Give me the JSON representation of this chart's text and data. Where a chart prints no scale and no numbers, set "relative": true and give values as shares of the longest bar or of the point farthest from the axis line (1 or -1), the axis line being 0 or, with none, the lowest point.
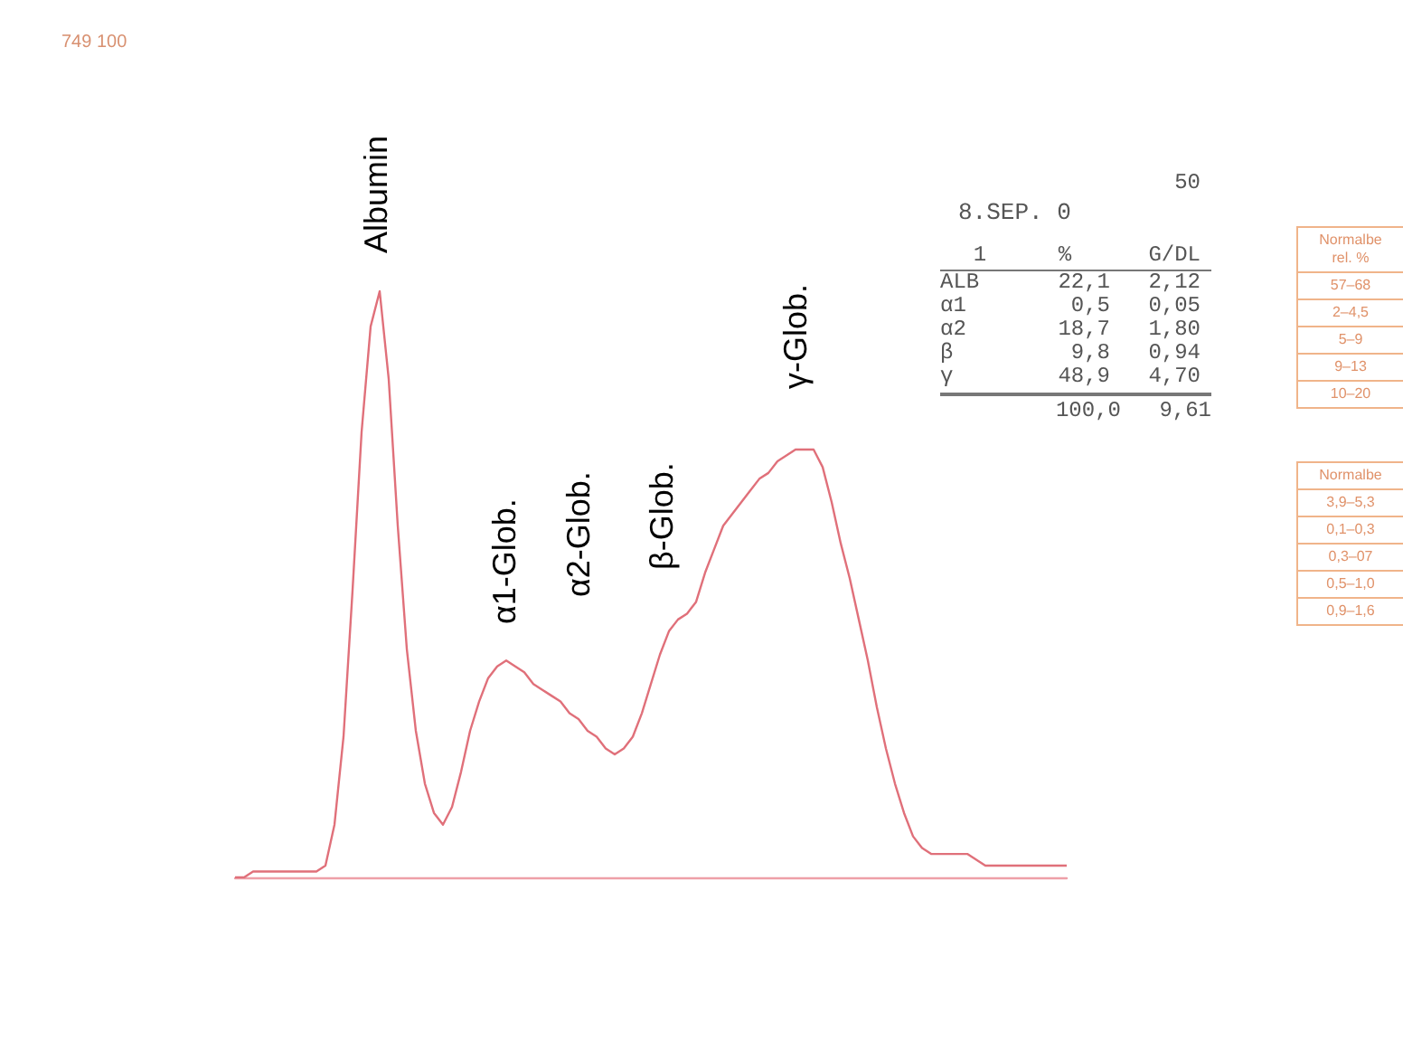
{
  "chart_data": [
    {
      "type": "line",
      "relative": true,
      "color": "#e0707a",
      "line_style": "solid",
      "annotations": [
        "749 100",
        "Albumin",
        "α1-Glob.",
        "α2-Glob.",
        "β-Glob.",
        "γ-Glob."
      ],
      "categories": [
        null,
        null,
        null,
        null,
        null,
        null,
        null,
        null,
        null,
        null,
        null,
        null,
        null,
        null,
        null,
        null,
        null,
        null,
        null,
        null,
        null,
        null,
        null,
        null,
        null,
        null,
        null,
        null,
        null,
        null,
        null,
        null,
        null,
        null,
        null,
        null,
        null,
        null,
        null,
        null,
        null,
        null,
        null,
        null,
        null,
        null,
        null,
        null,
        null,
        null,
        null,
        null,
        null,
        null,
        null,
        null,
        null,
        null,
        null,
        null,
        null,
        null,
        null,
        null,
        null,
        null,
        null,
        null,
        null,
        null,
        null,
        null,
        null,
        null,
        null,
        null,
        null,
        null,
        null,
        null,
        null,
        null,
        null,
        null,
        null,
        null,
        null,
        null,
        null,
        null,
        null,
        null,
        null
      ],
      "values": [
        0,
        0,
        0.01,
        0.01,
        0.01,
        0.01,
        0.01,
        0.01,
        0.01,
        0.01,
        0.02,
        0.09,
        0.24,
        0.49,
        0.76,
        0.94,
        1,
        0.85,
        0.6,
        0.39,
        0.25,
        0.16,
        0.11,
        0.09,
        0.12,
        0.18,
        0.25,
        0.3,
        0.34,
        0.36,
        0.37,
        0.36,
        0.35,
        0.33,
        0.32,
        0.31,
        0.3,
        0.28,
        0.27,
        0.25,
        0.24,
        0.22,
        0.21,
        0.22,
        0.24,
        0.28,
        0.33,
        0.38,
        0.42,
        0.44,
        0.45,
        0.47,
        0.52,
        0.56,
        0.6,
        0.62,
        0.64,
        0.66,
        0.68,
        0.69,
        0.71,
        0.72,
        0.73,
        0.73,
        0.73,
        0.7,
        0.64,
        0.57,
        0.51,
        0.44,
        0.37,
        0.29,
        0.22,
        0.16,
        0.11,
        0.07,
        0.05,
        0.04,
        0.04,
        0.04,
        0.04,
        0.04,
        0.03,
        0.02,
        0.02,
        0.02,
        0.02,
        0.02,
        0.02,
        0.02,
        0.02,
        0.02,
        0.02
      ]
    },
    {
      "type": "other",
      "title": "8.SEP. 0",
      "subtitle": "50",
      "annotations": [
        "1",
        "%",
        "G/DL",
        "ALB",
        "22,1",
        "2,12",
        "α1",
        "0,5",
        "0,05",
        "α2",
        "18,7",
        "1,80",
        "β",
        "9,8",
        "0,94",
        "γ",
        "48,9",
        "4,70",
        "100,0",
        "9,61"
      ]
    },
    {
      "type": "other",
      "title": "Normalbe",
      "subtitle": "rel. %",
      "categories": [
        "57–68",
        "2–4,5",
        "5–9",
        "9–13",
        "10–20"
      ]
    },
    {
      "type": "other",
      "title": "Normalbe",
      "categories": [
        "3,9–5,3",
        "0,1–0,3",
        "0,3–07",
        "0,5–1,0",
        "0,9–1,6"
      ]
    }
  ]
}
